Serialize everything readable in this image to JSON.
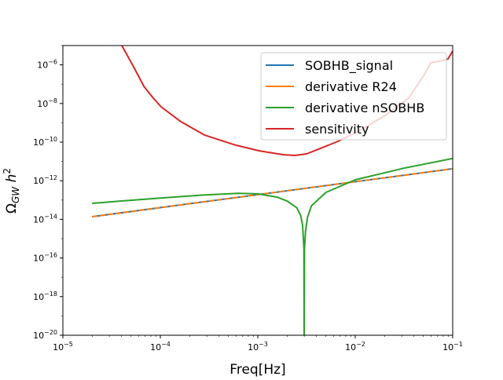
{
  "chart_data": {
    "type": "line",
    "title": "",
    "xlabel": "Freq[Hz]",
    "ylabel": "Ω_GW h^2",
    "xscale": "log",
    "yscale": "log",
    "xlim": [
      1e-05,
      0.1
    ],
    "ylim": [
      1e-20,
      1e-05
    ],
    "xticks": [
      {
        "value": 1e-05,
        "label": "10^-5"
      },
      {
        "value": 0.0001,
        "label": "10^-4"
      },
      {
        "value": 0.001,
        "label": "10^-3"
      },
      {
        "value": 0.01,
        "label": "10^-2"
      },
      {
        "value": 0.1,
        "label": "10^-1"
      }
    ],
    "yticks": [
      {
        "value": 1e-20,
        "label": "10^-20"
      },
      {
        "value": 1e-18,
        "label": "10^-18"
      },
      {
        "value": 1e-16,
        "label": "10^-16"
      },
      {
        "value": 1e-14,
        "label": "10^-14"
      },
      {
        "value": 1e-12,
        "label": "10^-12"
      },
      {
        "value": 1e-10,
        "label": "10^-10"
      },
      {
        "value": 1e-08,
        "label": "10^-8"
      },
      {
        "value": 1e-06,
        "label": "10^-6"
      }
    ],
    "legend_position": "top-right",
    "series": [
      {
        "name": "SOBHB_signal",
        "color": "#1f77b4",
        "log10_x": [
          -4.7,
          -1.0
        ],
        "log10_y": [
          -13.86,
          -11.38
        ]
      },
      {
        "name": "derivative R24",
        "color": "#ff7f0e",
        "dashed": true,
        "log10_x": [
          -4.7,
          -1.0
        ],
        "log10_y": [
          -13.86,
          -11.38
        ]
      },
      {
        "name": "derivative nSOBHB",
        "color": "#2ca02c",
        "log10_x": [
          -4.7,
          -4.4,
          -4.0,
          -3.6,
          -3.2,
          -3.0,
          -2.8,
          -2.7,
          -2.6,
          -2.56,
          -2.54,
          -2.527,
          -2.524,
          -2.521,
          -2.51,
          -2.49,
          -2.45,
          -2.3,
          -2.0,
          -1.5,
          -1.0
        ],
        "log10_y": [
          -13.17,
          -13.05,
          -12.9,
          -12.75,
          -12.65,
          -12.68,
          -12.85,
          -13.05,
          -13.4,
          -13.8,
          -14.3,
          -15.5,
          -20.5,
          -15.5,
          -14.6,
          -13.9,
          -13.3,
          -12.6,
          -11.95,
          -11.35,
          -10.85
        ]
      },
      {
        "name": "sensitivity",
        "color": "#d62728",
        "log10_x": [
          -4.395,
          -4.274,
          -4.169,
          -4.073,
          -3.992,
          -3.79,
          -3.548,
          -3.226,
          -2.984,
          -2.742,
          -2.621,
          -2.5,
          -2.379,
          -2.177,
          -1.935,
          -1.694,
          -1.452,
          -1.29,
          -1.226,
          -1.129,
          -1.048,
          -1.0
        ],
        "log10_y": [
          -5.0,
          -6.1,
          -7.11,
          -7.72,
          -8.17,
          -8.94,
          -9.63,
          -10.16,
          -10.45,
          -10.65,
          -10.69,
          -10.61,
          -10.37,
          -9.96,
          -9.35,
          -8.62,
          -7.72,
          -6.5,
          -5.89,
          -5.81,
          -5.69,
          -5.28
        ]
      }
    ]
  }
}
